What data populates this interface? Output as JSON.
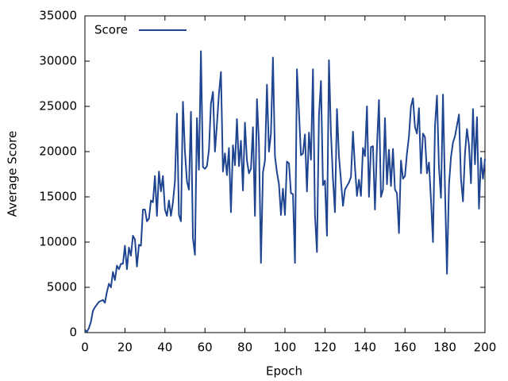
{
  "chart_data": {
    "type": "line",
    "xlabel": "Epoch",
    "ylabel": "Average Score",
    "x": [
      0,
      1,
      2,
      3,
      4,
      5,
      6,
      7,
      8,
      9,
      10,
      11,
      12,
      13,
      14,
      15,
      16,
      17,
      18,
      19,
      20,
      21,
      22,
      23,
      24,
      25,
      26,
      27,
      28,
      29,
      30,
      31,
      32,
      33,
      34,
      35,
      36,
      37,
      38,
      39,
      40,
      41,
      42,
      43,
      44,
      45,
      46,
      47,
      48,
      49,
      50,
      51,
      52,
      53,
      54,
      55,
      56,
      57,
      58,
      59,
      60,
      61,
      62,
      63,
      64,
      65,
      66,
      67,
      68,
      69,
      70,
      71,
      72,
      73,
      74,
      75,
      76,
      77,
      78,
      79,
      80,
      81,
      82,
      83,
      84,
      85,
      86,
      87,
      88,
      89,
      90,
      91,
      92,
      93,
      94,
      95,
      96,
      97,
      98,
      99,
      100,
      101,
      102,
      103,
      104,
      105,
      106,
      107,
      108,
      109,
      110,
      111,
      112,
      113,
      114,
      115,
      116,
      117,
      118,
      119,
      120,
      121,
      122,
      123,
      124,
      125,
      126,
      127,
      128,
      129,
      130,
      131,
      132,
      133,
      134,
      135,
      136,
      137,
      138,
      139,
      140,
      141,
      142,
      143,
      144,
      145,
      146,
      147,
      148,
      149,
      150,
      151,
      152,
      153,
      154,
      155,
      156,
      157,
      158,
      159,
      160,
      161,
      162,
      163,
      164,
      165,
      166,
      167,
      168,
      169,
      170,
      171,
      172,
      173,
      174,
      175,
      176,
      177,
      178,
      179,
      180,
      181,
      182,
      183,
      184,
      185,
      186,
      187,
      188,
      189,
      190,
      191,
      192,
      193,
      194,
      195,
      196,
      197,
      198,
      199,
      200
    ],
    "series": [
      {
        "name": "Score",
        "color": "#1f4591",
        "values": [
          300,
          100,
          500,
          1200,
          2400,
          2800,
          3100,
          3400,
          3500,
          3600,
          3300,
          4500,
          5400,
          5000,
          6700,
          5800,
          7400,
          7000,
          7600,
          7600,
          9600,
          7000,
          9400,
          8500,
          10700,
          10300,
          7300,
          9700,
          9600,
          13600,
          13600,
          12300,
          12600,
          14600,
          14400,
          17300,
          12900,
          17800,
          15600,
          17300,
          13600,
          12900,
          14600,
          12900,
          14400,
          16700,
          24200,
          13000,
          12300,
          25500,
          20000,
          16700,
          15800,
          24400,
          10400,
          8600,
          23700,
          18000,
          31100,
          18300,
          18100,
          18400,
          20200,
          25300,
          26600,
          20000,
          23000,
          26400,
          28800,
          17800,
          19800,
          17400,
          20400,
          13300,
          20700,
          18500,
          23600,
          18400,
          21200,
          15700,
          23200,
          19000,
          17600,
          18100,
          22700,
          12900,
          25800,
          21000,
          7700,
          17700,
          19000,
          27400,
          20000,
          22000,
          30400,
          19500,
          17700,
          16400,
          13000,
          15900,
          13000,
          18900,
          18700,
          15400,
          15300,
          7700,
          29100,
          24400,
          19600,
          19800,
          21900,
          15600,
          22100,
          19100,
          29100,
          13000,
          8900,
          24000,
          27800,
          16300,
          16800,
          10700,
          30100,
          22000,
          17000,
          13300,
          24700,
          19500,
          16800,
          14000,
          15800,
          16200,
          16600,
          17200,
          22200,
          18300,
          15100,
          16900,
          15100,
          20400,
          19500,
          25000,
          15000,
          20500,
          20600,
          13600,
          20600,
          25700,
          15000,
          15800,
          23700,
          16400,
          20200,
          16200,
          20300,
          15800,
          15400,
          11000,
          19000,
          17000,
          17300,
          19800,
          21700,
          25000,
          25900,
          22700,
          22000,
          24800,
          17600,
          22000,
          21600,
          17600,
          18800,
          14700,
          10000,
          22800,
          26200,
          18200,
          14900,
          26300,
          16000,
          6500,
          16300,
          19400,
          21000,
          21700,
          22900,
          24100,
          17000,
          14500,
          19800,
          22500,
          20700,
          16500,
          24700,
          18600,
          23800,
          13700,
          19300,
          17000,
          19200
        ]
      }
    ],
    "xlim": [
      0,
      200
    ],
    "xticks": [
      0,
      20,
      40,
      60,
      80,
      100,
      120,
      140,
      160,
      180,
      200
    ],
    "ylim": [
      0,
      35000
    ],
    "yticks": [
      0,
      5000,
      10000,
      15000,
      20000,
      25000,
      30000,
      35000
    ],
    "legend": "upper left"
  }
}
